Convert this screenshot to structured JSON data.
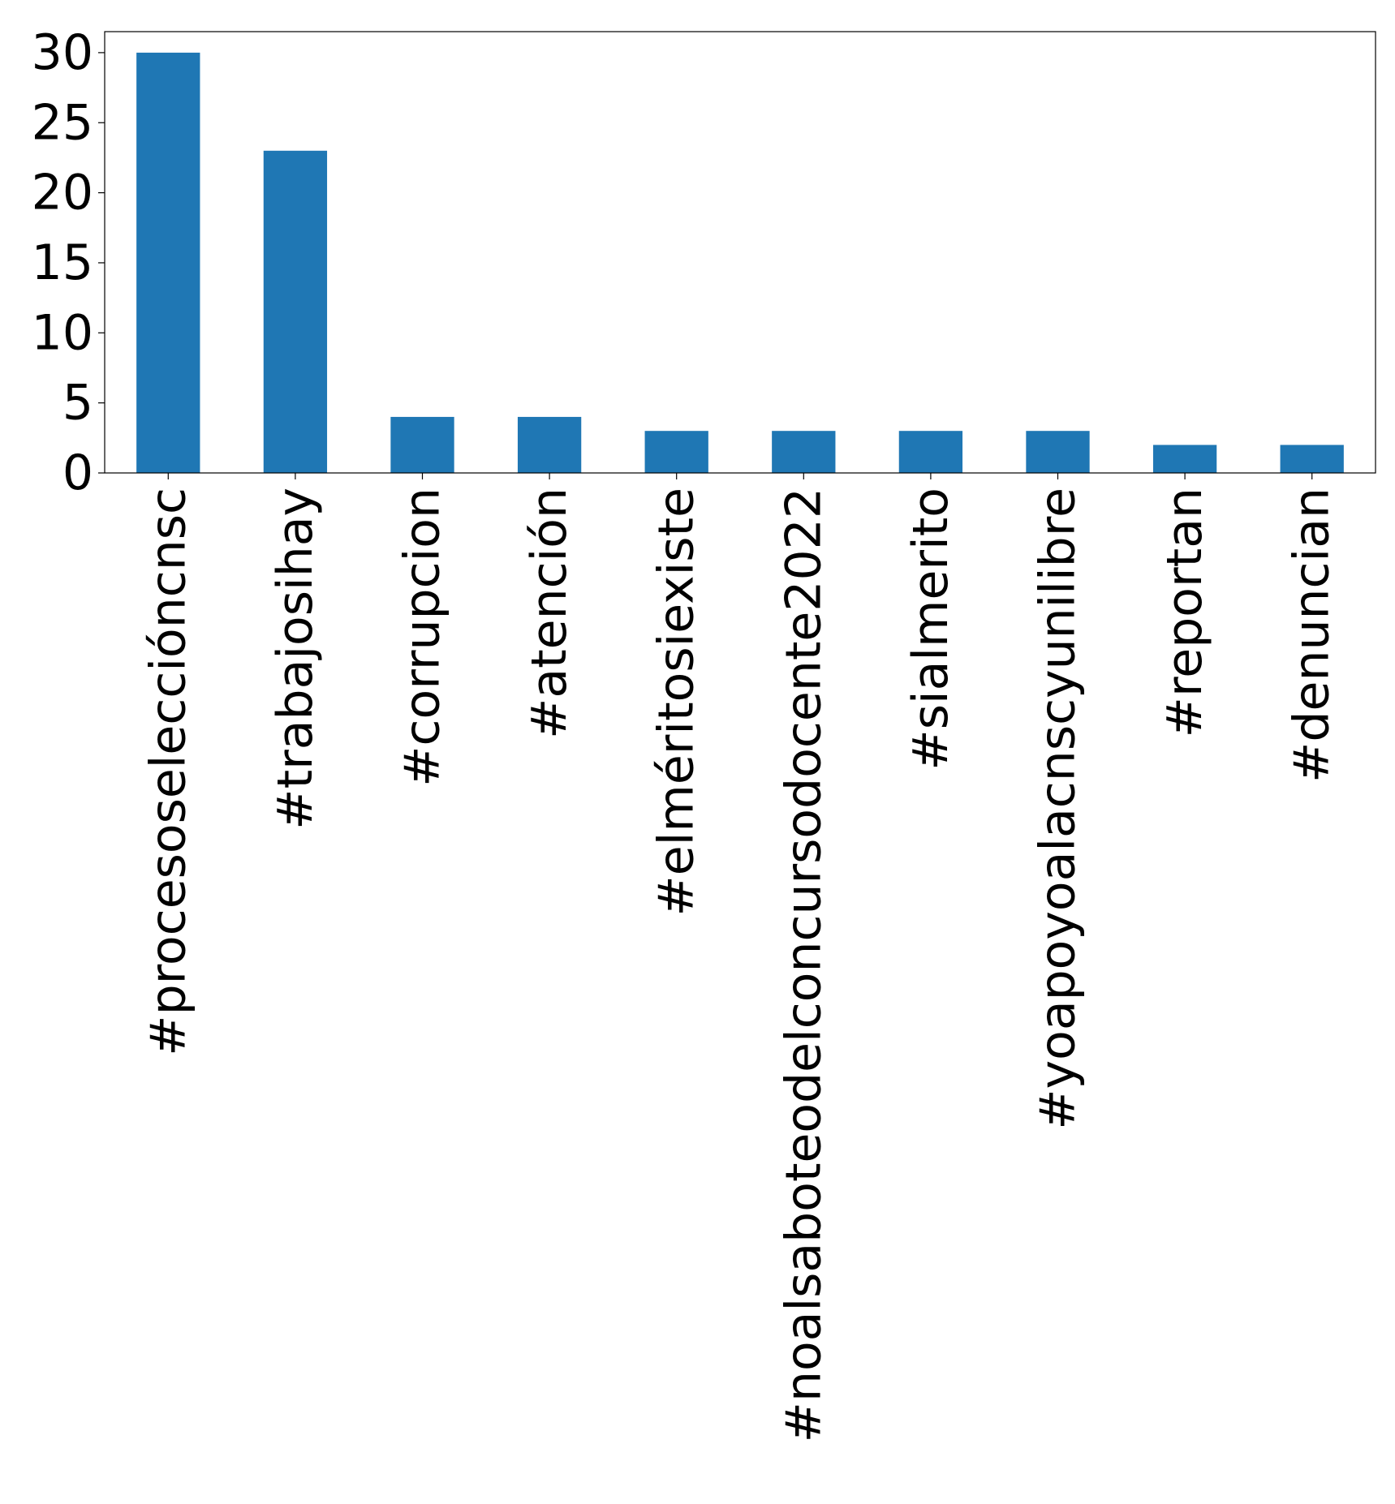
{
  "chart_data": {
    "type": "bar",
    "categories": [
      "#procesoselecciόncnsc",
      "#trabajosihay",
      "#corrupcion",
      "#atención",
      "#elméritosiexiste",
      "#noalsaboteodelconcursodocente2022",
      "#sialmerito",
      "#yoapoyoalacnscyunilibre",
      "#reportan",
      "#denuncian"
    ],
    "values": [
      30,
      23,
      4,
      4,
      3,
      3,
      3,
      3,
      2,
      2
    ],
    "color": "#1f77b4",
    "ylim": [
      0,
      31.5
    ],
    "yticks": [
      0,
      5,
      10,
      15,
      20,
      25,
      30
    ],
    "grid": false
  }
}
